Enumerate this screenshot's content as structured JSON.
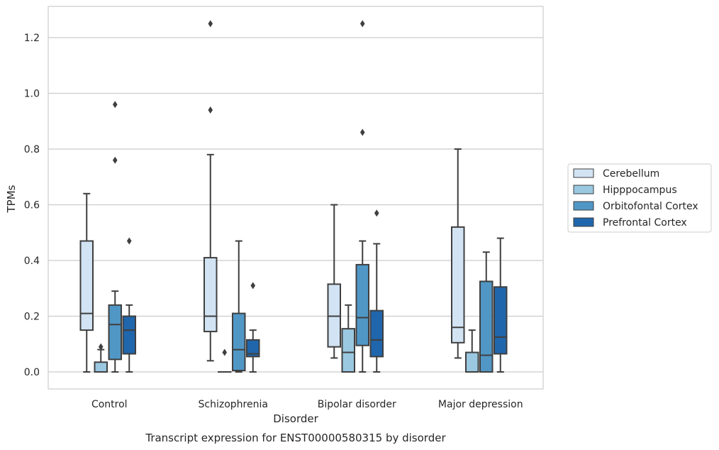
{
  "chart_data": {
    "type": "box",
    "title": "",
    "caption": "Transcript expression for ENST00000580315 by disorder",
    "xlabel": "Disorder",
    "ylabel": "TPMs",
    "ylim": [
      -0.06,
      1.32
    ],
    "yticks": [
      "0.0",
      "0.2",
      "0.4",
      "0.6",
      "0.8",
      "1.0",
      "1.2"
    ],
    "grid": true,
    "legend_position": "right",
    "categories": [
      "Control",
      "Schizophrenia",
      "Bipolar disorder",
      "Major depression"
    ],
    "series": [
      {
        "name": "Cerebellum",
        "color": "#d2e3f3",
        "boxes": [
          {
            "min": 0.0,
            "q1": 0.15,
            "median": 0.21,
            "q3": 0.47,
            "max": 0.64,
            "outliers": []
          },
          {
            "min": 0.04,
            "q1": 0.145,
            "median": 0.2,
            "q3": 0.41,
            "max": 0.78,
            "outliers": [
              0.94,
              1.25
            ]
          },
          {
            "min": 0.05,
            "q1": 0.09,
            "median": 0.2,
            "q3": 0.315,
            "max": 0.6,
            "outliers": []
          },
          {
            "min": 0.05,
            "q1": 0.105,
            "median": 0.16,
            "q3": 0.52,
            "max": 0.8,
            "outliers": []
          }
        ]
      },
      {
        "name": "Hipppocampus",
        "color": "#9ac8e0",
        "boxes": [
          {
            "min": 0.0,
            "q1": 0.0,
            "median": 0.0,
            "q3": 0.035,
            "max": 0.08,
            "outliers": [
              0.09
            ]
          },
          {
            "min": 0.0,
            "q1": 0.0,
            "median": 0.0,
            "q3": 0.0,
            "max": 0.0,
            "outliers": [
              0.07
            ]
          },
          {
            "min": 0.0,
            "q1": 0.0,
            "median": 0.07,
            "q3": 0.155,
            "max": 0.24,
            "outliers": []
          },
          {
            "min": 0.0,
            "q1": 0.0,
            "median": 0.0,
            "q3": 0.07,
            "max": 0.15,
            "outliers": []
          }
        ]
      },
      {
        "name": "Orbitofontal Cortex",
        "color": "#5097c6",
        "boxes": [
          {
            "min": 0.0,
            "q1": 0.045,
            "median": 0.17,
            "q3": 0.24,
            "max": 0.29,
            "outliers": [
              0.76,
              0.96
            ]
          },
          {
            "min": 0.0,
            "q1": 0.005,
            "median": 0.08,
            "q3": 0.21,
            "max": 0.47,
            "outliers": []
          },
          {
            "min": 0.0,
            "q1": 0.095,
            "median": 0.195,
            "q3": 0.385,
            "max": 0.47,
            "outliers": [
              0.86,
              1.25
            ]
          },
          {
            "min": 0.0,
            "q1": 0.0,
            "median": 0.06,
            "q3": 0.325,
            "max": 0.43,
            "outliers": []
          }
        ]
      },
      {
        "name": "Prefrontal Cortex",
        "color": "#2066ac",
        "boxes": [
          {
            "min": 0.0,
            "q1": 0.065,
            "median": 0.15,
            "q3": 0.2,
            "max": 0.24,
            "outliers": [
              0.47
            ]
          },
          {
            "min": 0.0,
            "q1": 0.055,
            "median": 0.065,
            "q3": 0.115,
            "max": 0.15,
            "outliers": [
              0.31
            ]
          },
          {
            "min": 0.0,
            "q1": 0.055,
            "median": 0.115,
            "q3": 0.22,
            "max": 0.46,
            "outliers": [
              0.57
            ]
          },
          {
            "min": 0.0,
            "q1": 0.065,
            "median": 0.125,
            "q3": 0.305,
            "max": 0.48,
            "outliers": []
          }
        ]
      }
    ]
  }
}
